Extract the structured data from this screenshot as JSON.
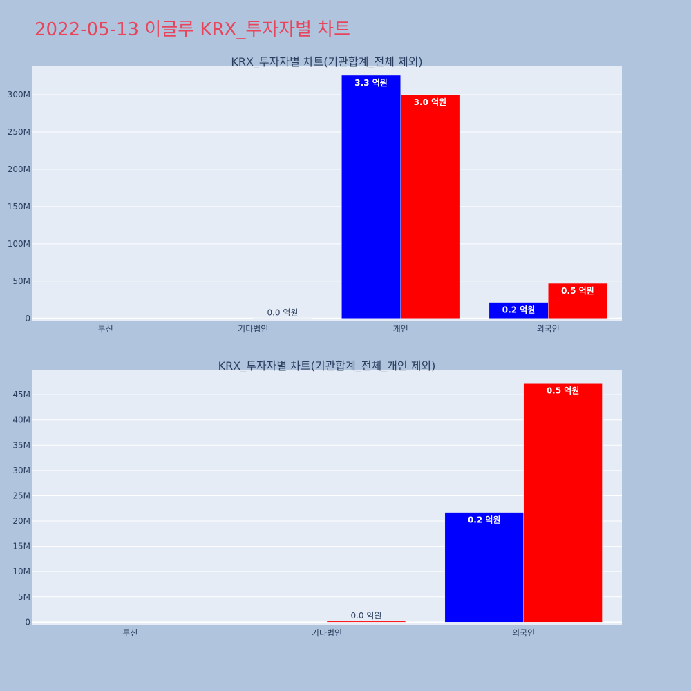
{
  "page_title": "2022-05-13 이글루 KRX_투자자별 차트",
  "colors": {
    "background": "#b0c4de",
    "plot_bg": "#e5ecf6",
    "title": "#e8455c",
    "text": "#2a3f5f"
  },
  "chart_data": [
    {
      "type": "bar",
      "title": "KRX_투자자별 차트(기관합계_전체 제외)",
      "categories": [
        "투신",
        "기타법인",
        "개인",
        "외국인"
      ],
      "series": [
        {
          "color": "#0000ff",
          "values": [
            0,
            0,
            326000000,
            21500000
          ],
          "labels": [
            "",
            "",
            "3.3 억원",
            "0.2 억원"
          ]
        },
        {
          "color": "#ff0000",
          "values": [
            0,
            200000,
            300000000,
            47000000
          ],
          "labels": [
            "",
            "0.0 억원",
            "3.0 억원",
            "0.5 억원"
          ]
        }
      ],
      "yticks": [
        0,
        50000000,
        100000000,
        150000000,
        200000000,
        250000000,
        300000000
      ],
      "ytick_labels": [
        "0",
        "50M",
        "100M",
        "150M",
        "200M",
        "250M",
        "300M"
      ],
      "ylim": [
        -3000000,
        338000000
      ],
      "grid": true
    },
    {
      "type": "bar",
      "title": "KRX_투자자별 차트(기관합계_전체_개인 제외)",
      "categories": [
        "투신",
        "기타법인",
        "외국인"
      ],
      "series": [
        {
          "color": "#0000ff",
          "values": [
            0,
            0,
            21700000
          ],
          "labels": [
            "",
            "",
            "0.2 억원"
          ]
        },
        {
          "color": "#ff0000",
          "values": [
            0,
            200000,
            47300000
          ],
          "labels": [
            "",
            "0.0 억원",
            "0.5 억원"
          ]
        }
      ],
      "yticks": [
        0,
        5000000,
        10000000,
        15000000,
        20000000,
        25000000,
        30000000,
        35000000,
        40000000,
        45000000
      ],
      "ytick_labels": [
        "0",
        "5M",
        "10M",
        "15M",
        "20M",
        "25M",
        "30M",
        "35M",
        "40M",
        "45M"
      ],
      "ylim": [
        -500000,
        49800000
      ],
      "grid": true
    }
  ]
}
